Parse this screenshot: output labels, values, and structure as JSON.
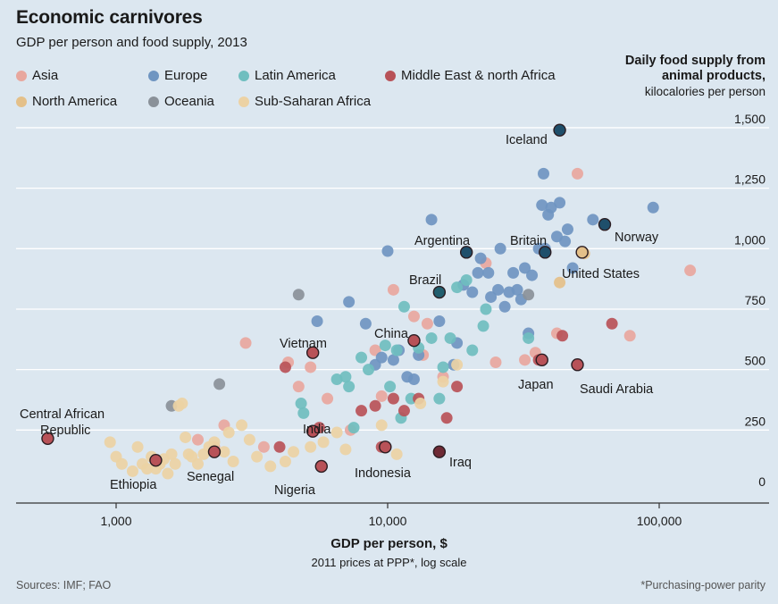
{
  "chart_data": {
    "type": "scatter",
    "title": "Economic carnivores",
    "subtitle": "GDP per person and food supply, 2013",
    "xlabel": "GDP per person, $",
    "xlabel_note": "2011 prices at PPP*, log scale",
    "ylabel_line1": "Daily food supply from",
    "ylabel_line2": "animal products,",
    "ylabel_line3": "kilocalories per person",
    "x_scale": "log",
    "xlim": [
      450,
      140000
    ],
    "ylim": [
      -30,
      1550
    ],
    "x_ticks": [
      {
        "value": 1000,
        "label": "1,000"
      },
      {
        "value": 10000,
        "label": "10,000"
      },
      {
        "value": 100000,
        "label": "100,000"
      }
    ],
    "y_ticks": [
      {
        "value": 0,
        "label": "0"
      },
      {
        "value": 250,
        "label": "250"
      },
      {
        "value": 500,
        "label": "500"
      },
      {
        "value": 750,
        "label": "750"
      },
      {
        "value": 1000,
        "label": "1,000"
      },
      {
        "value": 1250,
        "label": "1,250"
      },
      {
        "value": 1500,
        "label": "1,500"
      }
    ],
    "grid": "horizontal",
    "legend_placement": "top-left",
    "series": [
      {
        "name": "Asia",
        "color": "#e8a79e",
        "points": [
          [
            2000,
            210
          ],
          [
            2300,
            180
          ],
          [
            2500,
            270
          ],
          [
            3000,
            610
          ],
          [
            3500,
            180
          ],
          [
            4300,
            530
          ],
          [
            4700,
            430
          ],
          [
            5200,
            510
          ],
          [
            6000,
            380
          ],
          [
            7300,
            250
          ],
          [
            9000,
            580
          ],
          [
            9500,
            390
          ],
          [
            10500,
            830
          ],
          [
            12500,
            720
          ],
          [
            13500,
            560
          ],
          [
            14000,
            690
          ],
          [
            16000,
            470
          ],
          [
            23000,
            940
          ],
          [
            25000,
            530
          ],
          [
            32000,
            540
          ],
          [
            35000,
            570
          ],
          [
            42000,
            650
          ],
          [
            50000,
            1310
          ],
          [
            78000,
            640
          ],
          [
            130000,
            910
          ]
        ]
      },
      {
        "name": "Europe",
        "color": "#6f95c1",
        "points": [
          [
            5500,
            700
          ],
          [
            7200,
            780
          ],
          [
            8300,
            690
          ],
          [
            9000,
            520
          ],
          [
            9500,
            550
          ],
          [
            10000,
            990
          ],
          [
            10500,
            540
          ],
          [
            11000,
            580
          ],
          [
            11800,
            470
          ],
          [
            12500,
            460
          ],
          [
            13000,
            560
          ],
          [
            14500,
            1120
          ],
          [
            15500,
            700
          ],
          [
            17500,
            520
          ],
          [
            18000,
            610
          ],
          [
            19000,
            850
          ],
          [
            20500,
            820
          ],
          [
            21500,
            900
          ],
          [
            22000,
            960
          ],
          [
            23500,
            900
          ],
          [
            24000,
            800
          ],
          [
            25500,
            830
          ],
          [
            26000,
            1000
          ],
          [
            27000,
            760
          ],
          [
            28000,
            820
          ],
          [
            29000,
            900
          ],
          [
            30000,
            830
          ],
          [
            31000,
            790
          ],
          [
            32000,
            920
          ],
          [
            33000,
            650
          ],
          [
            34000,
            890
          ],
          [
            36000,
            1000
          ],
          [
            37000,
            1180
          ],
          [
            37500,
            1310
          ],
          [
            38000,
            1000
          ],
          [
            39000,
            1140
          ],
          [
            40000,
            1170
          ],
          [
            42000,
            1050
          ],
          [
            43000,
            1190
          ],
          [
            45000,
            1030
          ],
          [
            46000,
            1080
          ],
          [
            48000,
            920
          ],
          [
            57000,
            1120
          ],
          [
            95000,
            1170
          ]
        ]
      },
      {
        "name": "Latin America",
        "color": "#6fbebf",
        "points": [
          [
            4800,
            360
          ],
          [
            4900,
            320
          ],
          [
            6500,
            460
          ],
          [
            7000,
            470
          ],
          [
            7200,
            430
          ],
          [
            7500,
            260
          ],
          [
            8000,
            550
          ],
          [
            8500,
            500
          ],
          [
            9800,
            600
          ],
          [
            10200,
            430
          ],
          [
            10800,
            580
          ],
          [
            11200,
            300
          ],
          [
            11500,
            760
          ],
          [
            12200,
            380
          ],
          [
            13000,
            590
          ],
          [
            14500,
            630
          ],
          [
            15500,
            380
          ],
          [
            16000,
            510
          ],
          [
            17000,
            630
          ],
          [
            18000,
            840
          ],
          [
            19500,
            870
          ],
          [
            20500,
            580
          ],
          [
            22500,
            680
          ],
          [
            23000,
            750
          ],
          [
            33000,
            630
          ]
        ]
      },
      {
        "name": "Middle East & north Africa",
        "color": "#b85258",
        "points": [
          [
            4000,
            180
          ],
          [
            4200,
            510
          ],
          [
            5600,
            260
          ],
          [
            8000,
            330
          ],
          [
            9000,
            350
          ],
          [
            9500,
            180
          ],
          [
            10500,
            380
          ],
          [
            11500,
            330
          ],
          [
            13000,
            380
          ],
          [
            16500,
            300
          ],
          [
            18000,
            430
          ],
          [
            36000,
            540
          ],
          [
            44000,
            640
          ],
          [
            67000,
            690
          ]
        ]
      },
      {
        "name": "North America",
        "color": "#e4c089",
        "points": [
          [
            43000,
            860
          ],
          [
            53000,
            980
          ]
        ]
      },
      {
        "name": "Oceania",
        "color": "#8a9199",
        "points": [
          [
            1600,
            350
          ],
          [
            2400,
            440
          ],
          [
            4700,
            810
          ],
          [
            33000,
            810
          ]
        ]
      },
      {
        "name": "Sub-Saharan Africa",
        "color": "#ecd2a4",
        "points": [
          [
            950,
            200
          ],
          [
            1000,
            140
          ],
          [
            1050,
            110
          ],
          [
            1150,
            80
          ],
          [
            1200,
            180
          ],
          [
            1250,
            110
          ],
          [
            1300,
            90
          ],
          [
            1350,
            140
          ],
          [
            1400,
            90
          ],
          [
            1450,
            110
          ],
          [
            1500,
            130
          ],
          [
            1550,
            70
          ],
          [
            1600,
            150
          ],
          [
            1650,
            110
          ],
          [
            1700,
            350
          ],
          [
            1750,
            360
          ],
          [
            1800,
            220
          ],
          [
            1850,
            150
          ],
          [
            1900,
            140
          ],
          [
            2000,
            110
          ],
          [
            2100,
            150
          ],
          [
            2200,
            180
          ],
          [
            2300,
            200
          ],
          [
            2500,
            160
          ],
          [
            2600,
            240
          ],
          [
            2700,
            120
          ],
          [
            2900,
            270
          ],
          [
            3100,
            210
          ],
          [
            3300,
            140
          ],
          [
            3700,
            100
          ],
          [
            4200,
            120
          ],
          [
            4500,
            160
          ],
          [
            5200,
            180
          ],
          [
            5800,
            200
          ],
          [
            6500,
            240
          ],
          [
            7000,
            170
          ],
          [
            9500,
            270
          ],
          [
            10800,
            150
          ],
          [
            13200,
            360
          ],
          [
            16000,
            450
          ],
          [
            18000,
            520
          ]
        ]
      }
    ],
    "highlighted": [
      {
        "label": "Iceland",
        "x": 43000,
        "y": 1490,
        "color": "#1f4f6b"
      },
      {
        "label": "Norway",
        "x": 63000,
        "y": 1100,
        "color": "#1f4f6b"
      },
      {
        "label": "Britain",
        "x": 38000,
        "y": 985,
        "color": "#1f4f6b"
      },
      {
        "label": "Argentina",
        "x": 19500,
        "y": 985,
        "color": "#1f4f6b"
      },
      {
        "label": "United States",
        "x": 52000,
        "y": 985,
        "color": "#e4c089"
      },
      {
        "label": "Brazil",
        "x": 15500,
        "y": 820,
        "color": "#215e6e"
      },
      {
        "label": "China",
        "x": 12500,
        "y": 620,
        "color": "#b85258"
      },
      {
        "label": "Vietnam",
        "x": 5300,
        "y": 570,
        "color": "#b85258"
      },
      {
        "label": "Japan",
        "x": 37000,
        "y": 540,
        "color": "#b85258"
      },
      {
        "label": "Saudi Arabia",
        "x": 50000,
        "y": 520,
        "color": "#b85258"
      },
      {
        "label": "India",
        "x": 5300,
        "y": 245,
        "color": "#b85258"
      },
      {
        "label": "Indonesia",
        "x": 9800,
        "y": 180,
        "color": "#b85258"
      },
      {
        "label": "Iraq",
        "x": 15500,
        "y": 160,
        "color": "#6e2a35"
      },
      {
        "label": "Nigeria",
        "x": 5700,
        "y": 100,
        "color": "#b85258"
      },
      {
        "label": "Senegal",
        "x": 2300,
        "y": 160,
        "color": "#b85258"
      },
      {
        "label": "Ethiopia",
        "x": 1400,
        "y": 125,
        "color": "#b85258"
      },
      {
        "label": "Central African Republic",
        "x": 560,
        "y": 215,
        "color": "#b85258"
      }
    ],
    "annotation_text": {
      "iceland": "Iceland",
      "norway": "Norway",
      "britain": "Britain",
      "argentina": "Argentina",
      "us": "United States",
      "brazil": "Brazil",
      "china": "China",
      "vietnam": "Vietnam",
      "japan": "Japan",
      "saudi": "Saudi Arabia",
      "india": "India",
      "indonesia": "Indonesia",
      "iraq": "Iraq",
      "nigeria": "Nigeria",
      "senegal": "Senegal",
      "ethiopia": "Ethiopia",
      "car1": "Central African",
      "car2": "Republic"
    }
  },
  "sources": "Sources: IMF; FAO",
  "footnote": "*Purchasing-power parity"
}
